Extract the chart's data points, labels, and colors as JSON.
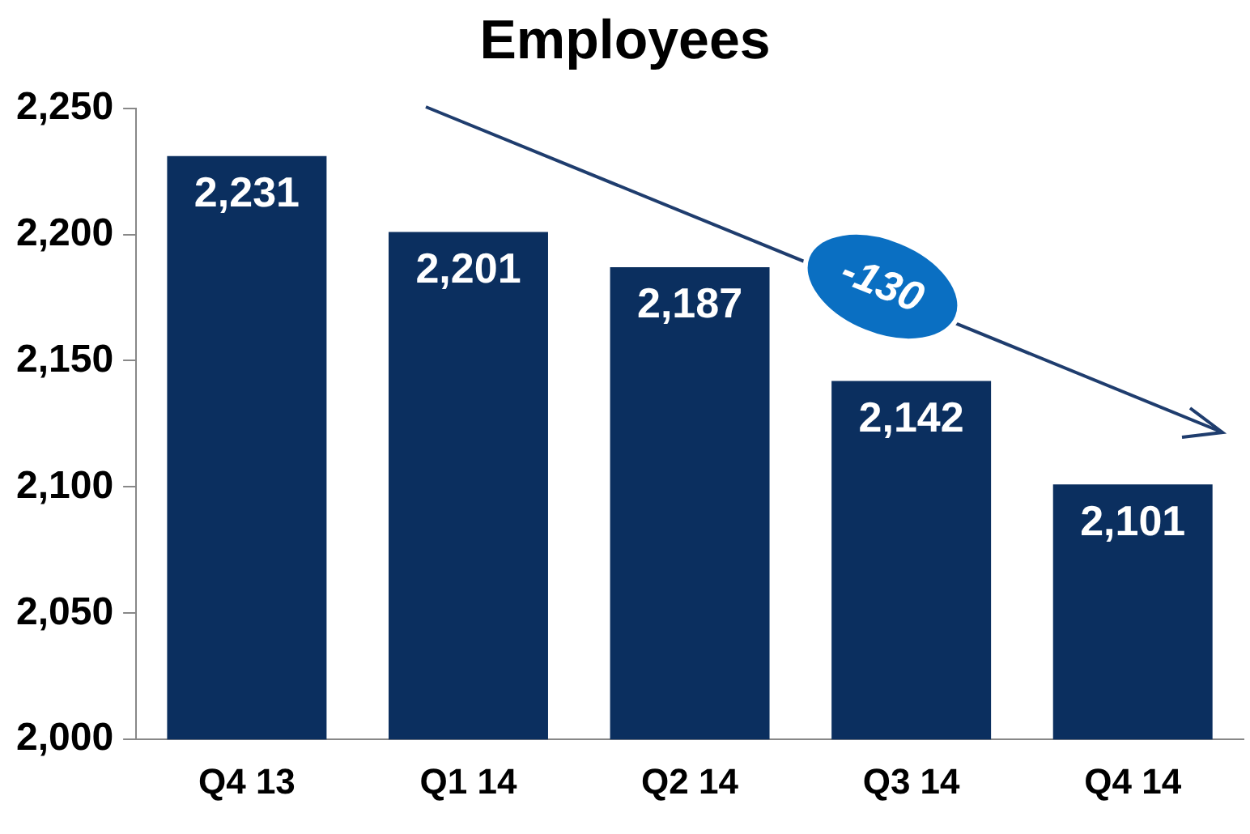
{
  "chart_data": {
    "type": "bar",
    "title": "Employees",
    "categories": [
      "Q4 13",
      "Q1 14",
      "Q2 14",
      "Q3 14",
      "Q4 14"
    ],
    "values": [
      2231,
      2201,
      2187,
      2142,
      2101
    ],
    "color": "#0b2f5f",
    "value_labels": [
      "2,231",
      "2,201",
      "2,187",
      "2,142",
      "2,101"
    ],
    "ylim": [
      2000,
      2250
    ],
    "yticks": [
      {
        "value": 2000,
        "label": "2,000"
      },
      {
        "value": 2050,
        "label": "2,050"
      },
      {
        "value": 2100,
        "label": "2,100"
      },
      {
        "value": 2150,
        "label": "2,150"
      },
      {
        "value": 2200,
        "label": "2,200"
      },
      {
        "value": 2250,
        "label": "2,250"
      }
    ],
    "grid": false,
    "legend": false,
    "annotations": [
      "-130"
    ]
  }
}
